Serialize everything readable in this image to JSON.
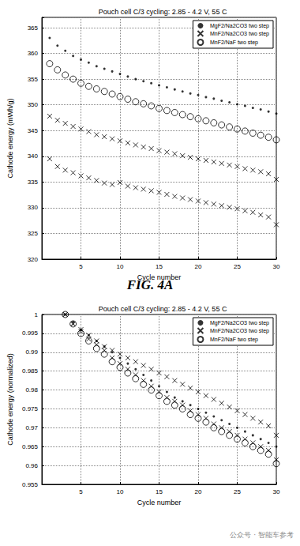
{
  "chart_data": [
    {
      "type": "scatter",
      "title": "Pouch cell C/3 cycling: 2.85 - 4.2 V, 55 C",
      "x_label": "Cycle number",
      "y_label": "Cathode energy (mWh/g)",
      "x": [
        1,
        2,
        3,
        4,
        5,
        6,
        7,
        8,
        9,
        10,
        11,
        12,
        13,
        14,
        15,
        16,
        17,
        18,
        19,
        20,
        21,
        22,
        23,
        24,
        25,
        26,
        27,
        28,
        29,
        30
      ],
      "xlim": [
        0,
        30
      ],
      "xticks": [
        5,
        10,
        15,
        20,
        25,
        30
      ],
      "ylim": [
        320,
        367
      ],
      "yticks": [
        320,
        325,
        330,
        335,
        340,
        345,
        350,
        355,
        360,
        365
      ],
      "grid": true,
      "legend": "upper right",
      "series": [
        {
          "name": "MgF2/Na2CO3 two step",
          "color": "#000000",
          "marker": ".",
          "values": [
            363,
            361.5,
            360.5,
            359.5,
            358.8,
            358.2,
            357.5,
            357,
            356.5,
            356,
            355.5,
            355,
            354.6,
            354.2,
            353.8,
            353.4,
            353,
            352.6,
            352.2,
            351.9,
            351.5,
            351.2,
            350.8,
            350.5,
            350.1,
            349.8,
            349.4,
            349.1,
            348.7,
            348.3
          ]
        },
        {
          "name": "MnF2/Na2CO3 two step",
          "color": "#000000",
          "marker": "x",
          "values": [
            347.8,
            347,
            346.4,
            345.8,
            345.3,
            344.8,
            344.2,
            343.8,
            343.4,
            343,
            342.6,
            342.2,
            341.8,
            341.5,
            341.1,
            340.8,
            340.5,
            340.1,
            339.8,
            339.5,
            339.2,
            338.9,
            338.6,
            338.3,
            338,
            337.6,
            337.3,
            337,
            336.6,
            335.5
          ]
        },
        {
          "name": "MnF2/Na2CO3 two step",
          "color": "#000000",
          "marker": "x",
          "values": [
            339.5,
            338,
            337.3,
            336.8,
            336.2,
            335.8,
            335.3,
            334.8,
            334.5,
            334.9,
            334.2,
            333.9,
            333.6,
            333.3,
            333,
            332.6,
            332.2,
            331.9,
            331.6,
            331.3,
            331,
            330.7,
            330.4,
            330.1,
            329.8,
            329.4,
            329.1,
            328.6,
            328.2,
            326.7
          ]
        },
        {
          "name": "MnF2/NaF two step",
          "color": "#000000",
          "marker": "o",
          "values": [
            358,
            356.8,
            355.8,
            355,
            354.2,
            353.6,
            353.1,
            352.6,
            352.1,
            351.6,
            351.1,
            350.6,
            350.2,
            349.8,
            349.3,
            348.9,
            348.5,
            348.1,
            347.7,
            347.3,
            346.9,
            346.5,
            346.1,
            345.7,
            345.3,
            344.9,
            344.5,
            344.1,
            343.7,
            343.2
          ]
        }
      ]
    },
    {
      "type": "scatter",
      "title": "Pouch cell C/3 cycling: 2.85 - 4.2 V, 55 C",
      "x_label": "Cycle number",
      "y_label": "Cathode energy (normalized)",
      "x": [
        3,
        4,
        5,
        6,
        7,
        8,
        9,
        10,
        11,
        12,
        13,
        14,
        15,
        16,
        17,
        18,
        19,
        20,
        21,
        22,
        23,
        24,
        25,
        26,
        27,
        28,
        29,
        30
      ],
      "xlim": [
        0,
        30
      ],
      "xticks": [
        5,
        10,
        15,
        20,
        25,
        30
      ],
      "ylim": [
        0.955,
        1
      ],
      "yticks": [
        0.955,
        0.96,
        0.965,
        0.97,
        0.975,
        0.98,
        0.985,
        0.99,
        0.995,
        1
      ],
      "grid": true,
      "legend": "upper right",
      "series": [
        {
          "name": "MgF2/Na2CO3 two step",
          "color": "#000000",
          "marker": ".",
          "values": [
            1,
            0.998,
            0.996,
            0.9945,
            0.993,
            0.9915,
            0.99,
            0.9885,
            0.987,
            0.9855,
            0.984,
            0.9825,
            0.981,
            0.9795,
            0.978,
            0.977,
            0.976,
            0.975,
            0.974,
            0.973,
            0.972,
            0.971,
            0.97,
            0.969,
            0.968,
            0.967,
            0.966,
            0.965
          ]
        },
        {
          "name": "MnF2/Na2CO3 two step",
          "color": "#000000",
          "marker": "x",
          "values": [
            1,
            0.9975,
            0.996,
            0.9945,
            0.993,
            0.9915,
            0.9905,
            0.9895,
            0.9885,
            0.9875,
            0.9865,
            0.9855,
            0.9845,
            0.9835,
            0.9825,
            0.9815,
            0.9805,
            0.9795,
            0.9785,
            0.9775,
            0.9765,
            0.9755,
            0.9745,
            0.9735,
            0.9725,
            0.9715,
            0.9705,
            0.968
          ]
        },
        {
          "name": "MnF2/Na2CO3 two step",
          "color": "#000000",
          "marker": "x",
          "values": [
            1,
            0.9975,
            0.9955,
            0.9935,
            0.992,
            0.9905,
            0.9885,
            0.987,
            0.9855,
            0.984,
            0.9825,
            0.981,
            0.9795,
            0.978,
            0.977,
            0.976,
            0.9745,
            0.9735,
            0.9725,
            0.971,
            0.97,
            0.969,
            0.968,
            0.967,
            0.966,
            0.965,
            0.964,
            0.9615
          ]
        },
        {
          "name": "MnF2/NaF two step",
          "color": "#000000",
          "marker": "o",
          "values": [
            1,
            0.9975,
            0.995,
            0.993,
            0.991,
            0.9895,
            0.9875,
            0.986,
            0.9845,
            0.983,
            0.9815,
            0.98,
            0.9785,
            0.977,
            0.976,
            0.975,
            0.9735,
            0.9725,
            0.9715,
            0.97,
            0.969,
            0.968,
            0.967,
            0.966,
            0.965,
            0.964,
            0.963,
            0.9605
          ]
        }
      ]
    }
  ],
  "figure_label": "FIG. 4A",
  "watermark": "公众号 · 智能车参考"
}
